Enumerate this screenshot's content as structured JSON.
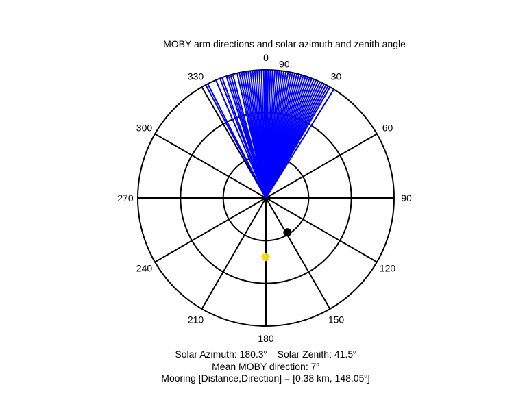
{
  "chart_data": {
    "type": "polar",
    "title": "MOBY arm directions and solar azimuth and zenith angle",
    "angle_ticks": [
      0,
      30,
      60,
      90,
      120,
      150,
      180,
      210,
      240,
      270,
      300,
      330
    ],
    "radial_ticks": [
      30,
      60,
      90
    ],
    "rmax": 90,
    "grid": true,
    "arm_directions_deg": [
      -28,
      -27,
      -23,
      -21,
      -20,
      -18,
      -17,
      -16,
      -15,
      -13,
      -12,
      -11,
      -10,
      -9,
      -8,
      -7,
      -6,
      -5,
      -4,
      -3,
      -2,
      -1,
      0,
      1,
      2,
      3,
      4,
      5,
      6,
      7,
      8,
      9,
      10,
      11,
      12,
      13,
      14,
      15,
      16,
      17,
      18,
      19,
      20,
      21,
      22,
      23,
      24,
      25,
      26,
      27,
      28,
      29,
      30,
      32
    ],
    "arm_color": "#0000ff",
    "solar_point": {
      "azimuth_deg": 180.3,
      "zenith_deg": 41.5,
      "color": "#ffd700"
    },
    "mooring_point": {
      "distance_km": 0.38,
      "direction_deg": 148.05,
      "color": "#000000"
    }
  },
  "captions": {
    "solar_azimuth": "Solar Azimuth: 180.3",
    "solar_zenith": "Solar Zenith: 41.5",
    "mean_direction": "Mean MOBY direction: 7",
    "mooring_prefix": "Mooring [Distance,Direction] = [0.38 km, 148.05",
    "mooring_suffix": "]",
    "degree_symbol": "o"
  }
}
